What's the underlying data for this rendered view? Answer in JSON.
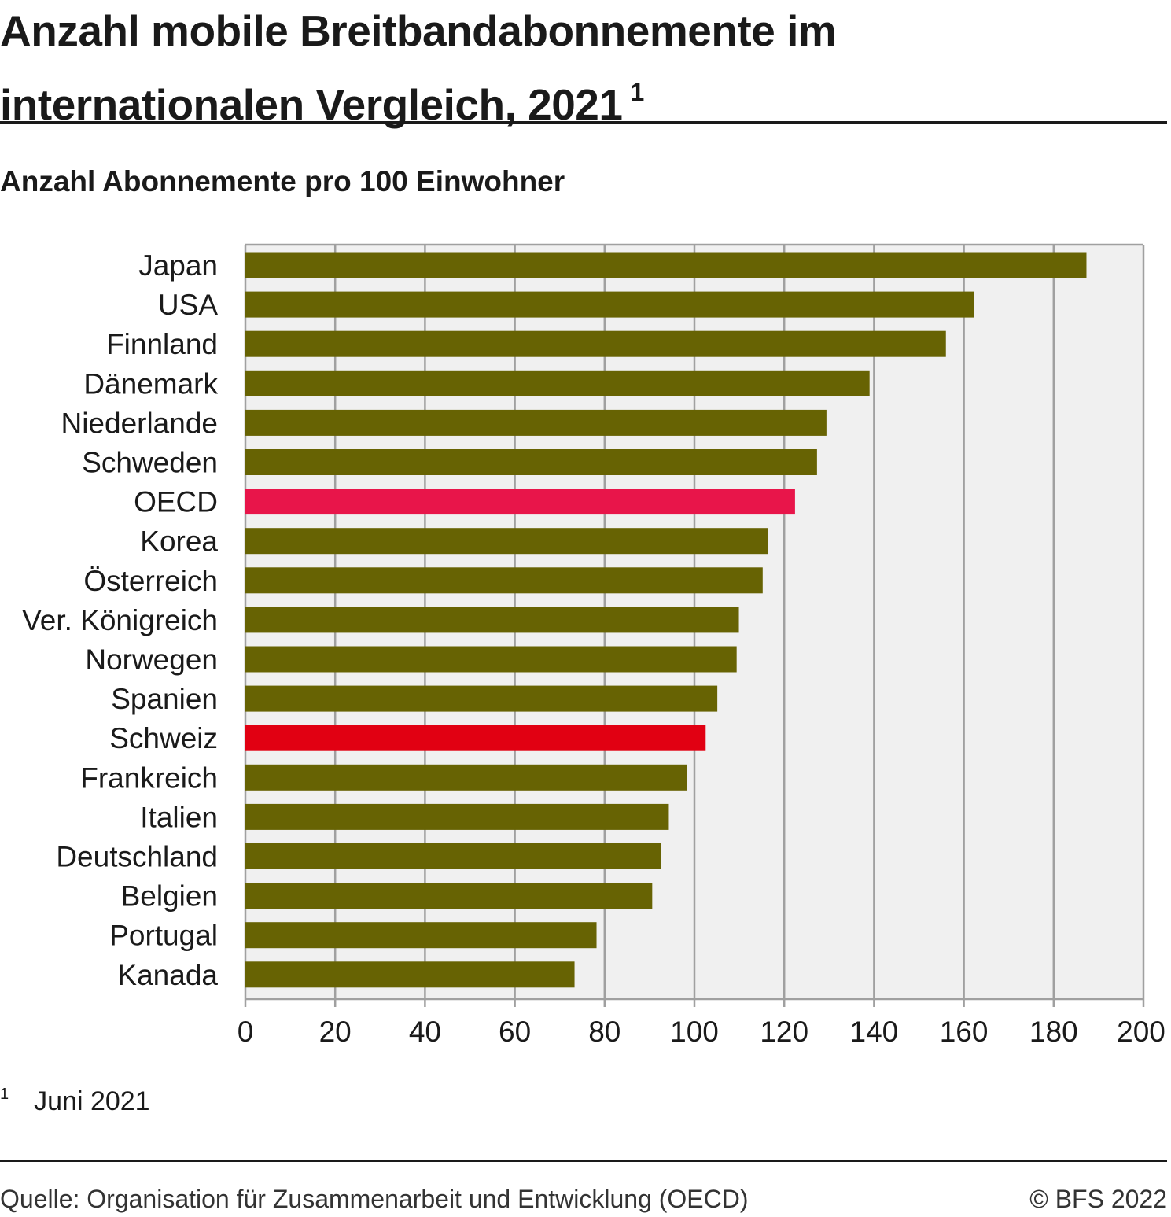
{
  "header": {
    "title": "Anzahl mobile Breitbandabonnemente im internationalen Vergleich, 2021",
    "title_footnote_mark": "1",
    "subtitle": "Anzahl Abonnemente pro 100 Einwohner"
  },
  "chart_data": {
    "type": "bar",
    "orientation": "horizontal",
    "categories": [
      "Japan",
      "USA",
      "Finnland",
      "Dänemark",
      "Niederlande",
      "Schweden",
      "OECD",
      "Korea",
      "Österreich",
      "Ver. Königreich",
      "Norwegen",
      "Spanien",
      "Schweiz",
      "Frankreich",
      "Italien",
      "Deutschland",
      "Belgien",
      "Portugal",
      "Kanada"
    ],
    "values": [
      187.3,
      162.2,
      156.0,
      139.0,
      129.4,
      127.3,
      122.4,
      116.4,
      115.2,
      109.9,
      109.4,
      105.1,
      102.5,
      98.3,
      94.3,
      92.6,
      90.6,
      78.2,
      73.3
    ],
    "highlight": {
      "OECD": "#e8154a",
      "Schweiz": "#e10012"
    },
    "bar_color": "#676303",
    "background_color": "#f0f0f0",
    "grid_color": "#a0a0a0",
    "xlim": [
      0,
      200
    ],
    "xticks": [
      "0",
      "20",
      "40",
      "60",
      "80",
      "100",
      "120",
      "140",
      "160",
      "180",
      "200"
    ],
    "grid": true,
    "legend": "none"
  },
  "footnote": {
    "mark": "1",
    "text": "Juni 2021"
  },
  "footer": {
    "source": "Quelle: Organisation für Zusammenarbeit und Entwicklung (OECD)",
    "copyright": "© BFS 2022"
  }
}
